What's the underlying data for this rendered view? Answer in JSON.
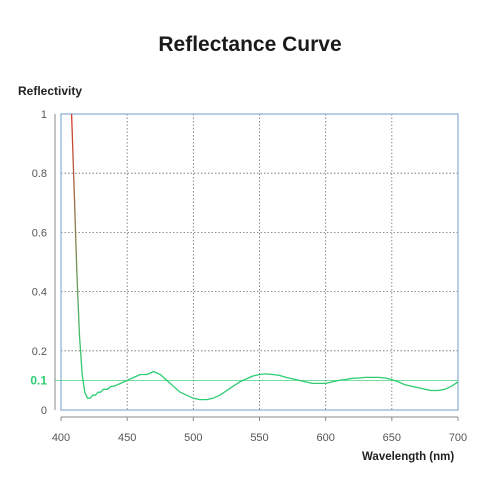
{
  "chart_data": {
    "type": "line",
    "title": "Reflectance Curve",
    "xlabel": "Wavelength (nm)",
    "ylabel": "Reflectivity",
    "xlim": [
      400,
      700
    ],
    "ylim": [
      0,
      1
    ],
    "grid": true,
    "x_ticks": [
      "400",
      "450",
      "500",
      "550",
      "600",
      "650",
      "700"
    ],
    "x_tick_values": [
      400,
      450,
      500,
      550,
      600,
      650,
      700
    ],
    "y_ticks": [
      "0",
      "0.2",
      "0.4",
      "0.6",
      "0.8",
      "1"
    ],
    "y_tick_values": [
      0,
      0.2,
      0.4,
      0.6,
      0.8,
      1
    ],
    "reference_line": {
      "value": 0.1,
      "label": "0.1",
      "color": "#2ecc71"
    },
    "line_colors": {
      "high": "#d9382c",
      "low": "#2ecc71"
    },
    "series": [
      {
        "x": [
          408,
          410,
          412,
          414,
          416,
          418,
          420,
          422,
          424,
          426,
          428,
          430,
          432,
          435,
          438,
          440,
          445,
          450,
          455,
          460,
          465,
          470,
          475,
          480,
          485,
          490,
          495,
          500,
          505,
          510,
          515,
          520,
          525,
          530,
          535,
          540,
          545,
          550,
          555,
          560,
          565,
          570,
          575,
          580,
          585,
          590,
          595,
          600,
          605,
          610,
          615,
          620,
          625,
          630,
          635,
          640,
          645,
          650,
          655,
          660,
          665,
          670,
          675,
          680,
          685,
          690,
          695,
          700
        ],
        "y": [
          1.0,
          0.74,
          0.46,
          0.25,
          0.12,
          0.06,
          0.04,
          0.04,
          0.05,
          0.05,
          0.06,
          0.06,
          0.07,
          0.07,
          0.08,
          0.08,
          0.09,
          0.1,
          0.11,
          0.12,
          0.12,
          0.13,
          0.12,
          0.1,
          0.08,
          0.06,
          0.05,
          0.04,
          0.035,
          0.035,
          0.04,
          0.05,
          0.065,
          0.08,
          0.095,
          0.105,
          0.115,
          0.12,
          0.122,
          0.12,
          0.117,
          0.11,
          0.105,
          0.1,
          0.095,
          0.09,
          0.09,
          0.09,
          0.095,
          0.1,
          0.103,
          0.107,
          0.108,
          0.11,
          0.11,
          0.11,
          0.108,
          0.103,
          0.095,
          0.085,
          0.08,
          0.075,
          0.07,
          0.066,
          0.066,
          0.07,
          0.08,
          0.095
        ]
      }
    ]
  }
}
